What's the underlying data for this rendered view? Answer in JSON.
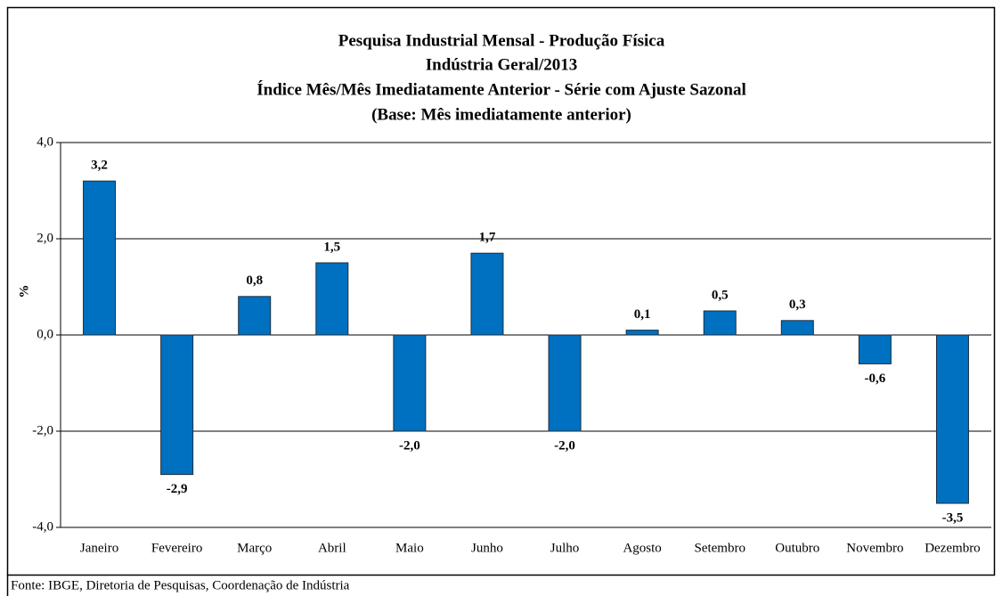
{
  "chart_data": {
    "type": "bar",
    "title": [
      "Pesquisa Industrial Mensal - Produção Física",
      "Indústria Geral/2013",
      "Índice Mês/Mês Imediatamente Anterior - Série com Ajuste Sazonal",
      "(Base: Mês imediatamente anterior)"
    ],
    "y_label": "%",
    "categories": [
      "Janeiro",
      "Fevereiro",
      "Março",
      "Abril",
      "Maio",
      "Junho",
      "Julho",
      "Agosto",
      "Setembro",
      "Outubro",
      "Novembro",
      "Dezembro"
    ],
    "values": [
      3.2,
      -2.9,
      0.8,
      1.5,
      -2.0,
      1.7,
      -2.0,
      0.1,
      0.5,
      0.3,
      -0.6,
      -3.5
    ],
    "value_labels": [
      "3,2",
      "-2,9",
      "0,8",
      "1,5",
      "-2,0",
      "1,7",
      "-2,0",
      "0,1",
      "0,5",
      "0,3",
      "-0,6",
      "-3,5"
    ],
    "color": "#0070c0",
    "ylim": [
      -4,
      4
    ],
    "yticks": [
      {
        "value": -4,
        "label": "-4,0"
      },
      {
        "value": -2,
        "label": "-2,0"
      },
      {
        "value": 0,
        "label": "0,0"
      },
      {
        "value": 2,
        "label": "2,0"
      },
      {
        "value": 4,
        "label": "4,0"
      }
    ],
    "grid": true,
    "source": "Fonte: IBGE, Diretoria de Pesquisas, Coordenação de Indústria"
  }
}
